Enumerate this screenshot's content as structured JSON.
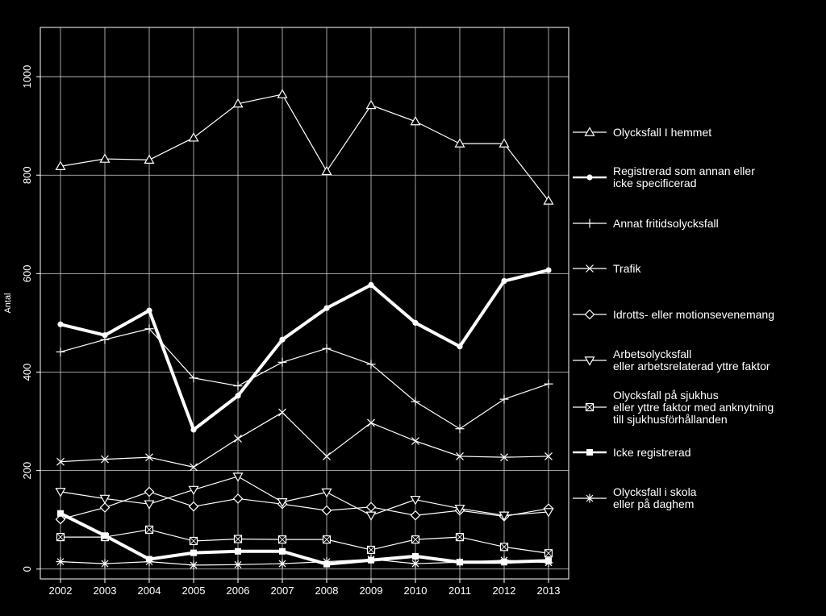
{
  "chart_data": {
    "type": "line",
    "ylabel": "Antal",
    "xlabel": "",
    "x": [
      "2002",
      "2003",
      "2004",
      "2005",
      "2006",
      "2007",
      "2008",
      "2009",
      "2010",
      "2011",
      "2012",
      "2013"
    ],
    "ylim": [
      -20,
      1100
    ],
    "yticks": [
      0,
      200,
      400,
      600,
      800,
      1000
    ],
    "grid": true,
    "legend_position": "right",
    "series": [
      {
        "name": "Olycksfall I hemmet",
        "lines": [
          "Olycksfall I hemmet"
        ],
        "marker": "triangle-up",
        "bold": false,
        "values": [
          818,
          833,
          831,
          876,
          945,
          964,
          808,
          942,
          909,
          864,
          864,
          748
        ]
      },
      {
        "name": "Registrerad som annan eller icke specificerad",
        "lines": [
          "Registrerad som annan eller",
          "icke specificerad"
        ],
        "marker": "dot",
        "bold": true,
        "values": [
          497,
          475,
          525,
          283,
          352,
          466,
          530,
          577,
          500,
          452,
          585,
          607
        ]
      },
      {
        "name": "Annat fritidsolycksfall",
        "lines": [
          "Annat fritidsolycksfall"
        ],
        "marker": "plus",
        "bold": false,
        "values": [
          441,
          466,
          488,
          388,
          372,
          420,
          448,
          416,
          340,
          285,
          345,
          376
        ]
      },
      {
        "name": "Trafik",
        "lines": [
          "Trafik"
        ],
        "marker": "x",
        "bold": false,
        "values": [
          218,
          223,
          227,
          207,
          265,
          318,
          229,
          297,
          260,
          229,
          227,
          229
        ]
      },
      {
        "name": "Idrotts- eller motionsevenemang",
        "lines": [
          "Idrotts- eller motionsevenemang"
        ],
        "marker": "diamond",
        "bold": false,
        "values": [
          101,
          125,
          157,
          127,
          143,
          132,
          119,
          126,
          109,
          119,
          107,
          123
        ]
      },
      {
        "name": "Arbetsolycksfall eller arbetsrelaterad yttre faktor",
        "lines": [
          "Arbetsolycksfall",
          "eller arbetsrelaterad yttre faktor"
        ],
        "marker": "triangle-down",
        "bold": false,
        "values": [
          157,
          143,
          132,
          161,
          188,
          136,
          156,
          109,
          141,
          123,
          109,
          116
        ]
      },
      {
        "name": "Olycksfall på sjukhus eller yttre faktor med anknytning till sjukhusförhållanden",
        "lines": [
          "Olycksfall på sjukhus",
          "eller yttre faktor med anknytning",
          "till sjukhusförhållanden"
        ],
        "marker": "square-x",
        "bold": false,
        "values": [
          65,
          65,
          80,
          57,
          61,
          60,
          60,
          39,
          60,
          65,
          45,
          32
        ]
      },
      {
        "name": "Icke registrerad",
        "lines": [
          "Icke registrerad"
        ],
        "marker": "square-filled",
        "bold": true,
        "values": [
          113,
          68,
          20,
          33,
          36,
          36,
          10,
          18,
          26,
          14,
          14,
          17
        ]
      },
      {
        "name": "Olycksfall i skola eller på daghem",
        "lines": [
          "Olycksfall i skola",
          "eller på daghem"
        ],
        "marker": "asterisk",
        "bold": false,
        "values": [
          15,
          11,
          15,
          8,
          9,
          11,
          15,
          20,
          11,
          14,
          18,
          13
        ]
      }
    ]
  }
}
